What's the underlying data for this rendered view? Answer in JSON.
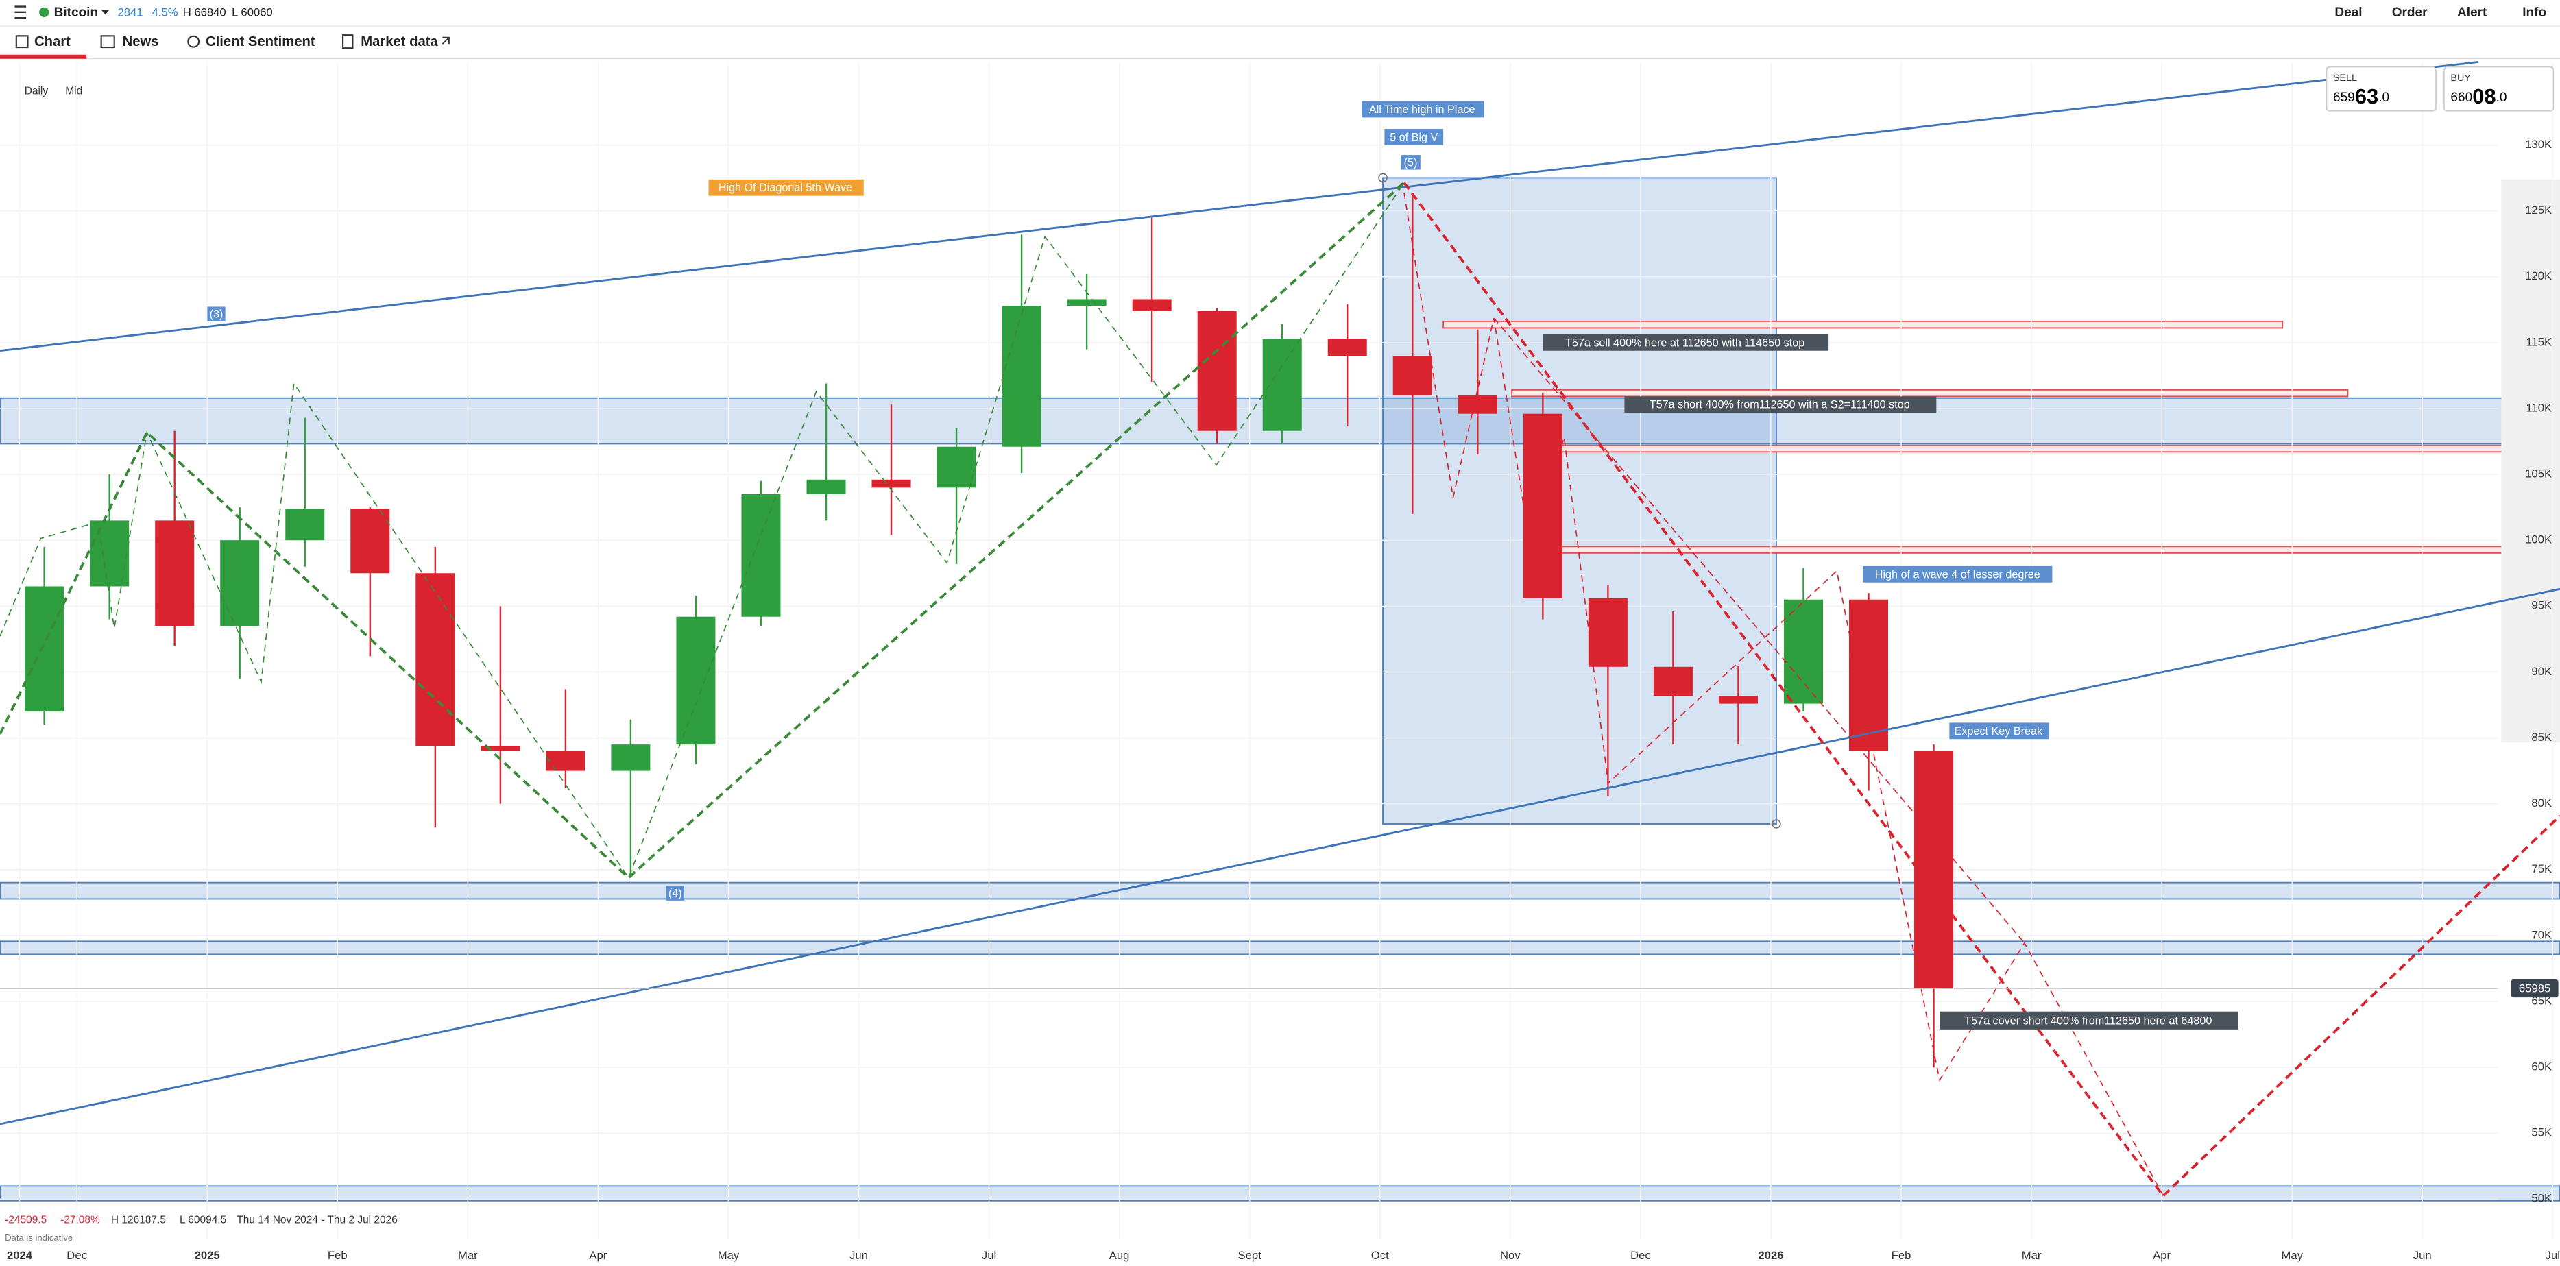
{
  "header": {
    "instrument": "Bitcoin",
    "change": "2841",
    "change_pct": "4.5%",
    "high": "H 66840",
    "low": "L 60060",
    "menu": [
      "Deal",
      "Order",
      "Alert",
      "Info"
    ]
  },
  "tabs": [
    "Chart",
    "News",
    "Client Sentiment",
    "Market data"
  ],
  "quote": {
    "sell_label": "SELL",
    "sell": [
      "659",
      "63",
      ".0"
    ],
    "buy_label": "BUY",
    "buy": [
      "660",
      "08",
      ".0"
    ]
  },
  "footer": {
    "change": "-24509.5",
    "change_pct": "-27.08%",
    "high": "H 126187.5",
    "low": "L 60094.5",
    "range": "Thu 14 Nov 2024 - Thu 2 Jul 2026",
    "note": "Data is indicative"
  },
  "chart_data": {
    "type": "candlestick",
    "interval": "Daily",
    "price_mode": "Mid",
    "annotations": {
      "ath": "All Time high in Place",
      "big_v": "5 of Big V",
      "w5": "(5)",
      "diag": "High Of Diagonal 5th Wave",
      "w3": "(3)",
      "w4": "(4)",
      "sell": "T57a sell 400% here at 112650 with 114650 stop",
      "short": "T57a short 400% from112650 with a S2=111400 stop",
      "wave4": "High of a wave 4 of lesser degree",
      "key_break": "Expect Key Break",
      "cover": "T57a cover short 400% from112650 here at 64800"
    },
    "x": [
      -0.5,
      0,
      0.5,
      1,
      1.5,
      2,
      2.5,
      3,
      3.5,
      4,
      4.5,
      5,
      5.5,
      6,
      6.5,
      7,
      7.5,
      8,
      8.5,
      9,
      9.5,
      10,
      10.5,
      11,
      11.5,
      12,
      12.5,
      13,
      13.5,
      14
    ],
    "open": [
      87000,
      96500,
      101500,
      93500,
      100000,
      102400,
      97500,
      84400,
      84000,
      82500,
      84500,
      94200,
      103500,
      104600,
      104000,
      107100,
      117800,
      118300,
      117400,
      108300,
      115300,
      114000,
      111000,
      109600,
      95600,
      90400,
      88200,
      87600,
      95500,
      84000
    ],
    "high": [
      99500,
      105000,
      108300,
      102500,
      109300,
      102500,
      99500,
      95000,
      88700,
      86400,
      95800,
      104500,
      111900,
      110300,
      108500,
      123200,
      120200,
      124500,
      117600,
      116400,
      117900,
      126200,
      116000,
      111200,
      96600,
      94600,
      90500,
      97900,
      96000,
      84500
    ],
    "low": [
      86000,
      94000,
      92000,
      89500,
      98000,
      91200,
      78200,
      80000,
      81200,
      74500,
      83000,
      93500,
      101500,
      100400,
      98200,
      105100,
      114500,
      112000,
      107300,
      107300,
      108700,
      102000,
      106500,
      94000,
      80600,
      84500,
      84500,
      87000,
      81000,
      60000
    ],
    "close": [
      96500,
      101500,
      93500,
      100000,
      102400,
      97500,
      84400,
      84000,
      82500,
      84500,
      94200,
      103500,
      104600,
      104000,
      107100,
      117800,
      118300,
      117400,
      108300,
      115300,
      114000,
      111000,
      109600,
      95600,
      90400,
      88200,
      87600,
      95500,
      84000,
      65985
    ],
    "up_color": "#2e9e3e",
    "down_color": "#d9232e",
    "current_price": 65985,
    "xlim": [
      -0.59,
      18.58
    ],
    "xticks": [
      {
        "value": -0.44,
        "label": "2024"
      },
      {
        "value": 0,
        "label": "Dec"
      },
      {
        "value": 1,
        "label": "2025"
      },
      {
        "value": 2,
        "label": "Feb"
      },
      {
        "value": 3,
        "label": "Mar"
      },
      {
        "value": 4,
        "label": "Apr"
      },
      {
        "value": 5,
        "label": "May"
      },
      {
        "value": 6,
        "label": "Jun"
      },
      {
        "value": 7,
        "label": "Jul"
      },
      {
        "value": 8,
        "label": "Aug"
      },
      {
        "value": 9,
        "label": "Sept"
      },
      {
        "value": 10,
        "label": "Oct"
      },
      {
        "value": 11,
        "label": "Nov"
      },
      {
        "value": 12,
        "label": "Dec"
      },
      {
        "value": 13,
        "label": "2026"
      },
      {
        "value": 14,
        "label": "Feb"
      },
      {
        "value": 15,
        "label": "Mar"
      },
      {
        "value": 16,
        "label": "Apr"
      },
      {
        "value": 17,
        "label": "May"
      },
      {
        "value": 18,
        "label": "Jun"
      },
      {
        "value": 19,
        "label": "Jul"
      }
    ],
    "ylim": [
      46900,
      136300
    ],
    "yticks": [
      {
        "value": 50000,
        "label": "50K"
      },
      {
        "value": 55000,
        "label": "55K"
      },
      {
        "value": 60000,
        "label": "60K"
      },
      {
        "value": 65000,
        "label": "65K"
      },
      {
        "value": 70000,
        "label": "70K"
      },
      {
        "value": 75000,
        "label": "75K"
      },
      {
        "value": 80000,
        "label": "80K"
      },
      {
        "value": 85000,
        "label": "85K"
      },
      {
        "value": 90000,
        "label": "90K"
      },
      {
        "value": 95000,
        "label": "95K"
      },
      {
        "value": 100000,
        "label": "100K"
      },
      {
        "value": 105000,
        "label": "105K"
      },
      {
        "value": 110000,
        "label": "110K"
      },
      {
        "value": 115000,
        "label": "115K"
      },
      {
        "value": 120000,
        "label": "120K"
      },
      {
        "value": 125000,
        "label": "125K"
      },
      {
        "value": 130000,
        "label": "130K"
      }
    ],
    "grid": true
  }
}
